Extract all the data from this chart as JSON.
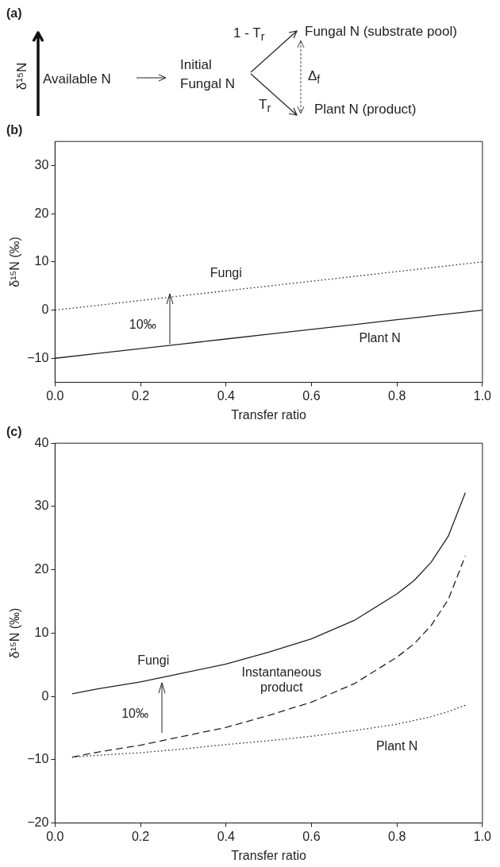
{
  "chart_data": [
    {
      "type": "other",
      "title": "(a)",
      "annotations": [
        "δ¹⁵N",
        "Available N",
        "Initial Fungal N",
        "1 - T$_{r}$",
        "T$_{r}$",
        "Fungal N (substrate pool)",
        "Plant N (product)",
        "Δ$_{f}$"
      ]
    },
    {
      "type": "line",
      "title": "(b)",
      "xlabel": "Transfer ratio",
      "ylabel": "δ¹⁵N (‰)",
      "x": [
        0,
        0.1,
        0.2,
        0.3,
        0.4,
        0.5,
        0.6,
        0.7,
        0.8,
        0.9,
        1
      ],
      "series": [
        {
          "name": "Fungi",
          "color": "#222222",
          "line_style": "dotted",
          "values": [
            0,
            1,
            2,
            3,
            4,
            5,
            6,
            7,
            8,
            9,
            10
          ]
        },
        {
          "name": "Plant N",
          "color": "#222222",
          "line_style": "solid",
          "values": [
            -10,
            -9,
            -8,
            -7,
            -6,
            -5,
            -4,
            -3,
            -2,
            -1,
            0
          ]
        }
      ],
      "xlim": [
        0,
        1
      ],
      "ylim": [
        -15,
        35
      ],
      "xticks": [
        {
          "value": 0,
          "label": "0.0"
        },
        {
          "value": 0.2,
          "label": "0.2"
        },
        {
          "value": 0.4,
          "label": "0.4"
        },
        {
          "value": 0.6,
          "label": "0.6"
        },
        {
          "value": 0.8,
          "label": "0.8"
        },
        {
          "value": 1,
          "label": "1.0"
        }
      ],
      "yticks": [
        -10,
        0,
        10,
        20,
        30
      ],
      "marker": "none",
      "annotations": [
        "10‰"
      ]
    },
    {
      "type": "line",
      "title": "(c)",
      "xlabel": "Transfer ratio",
      "ylabel": "δ¹⁵N (‰)",
      "x": [
        0.04,
        0.1,
        0.2,
        0.3,
        0.4,
        0.5,
        0.6,
        0.7,
        0.8,
        0.84,
        0.88,
        0.92,
        0.96
      ],
      "series": [
        {
          "name": "Fungi",
          "color": "#222222",
          "line_style": "solid",
          "values": [
            0.4,
            1.2,
            2.3,
            3.7,
            5.1,
            7.0,
            9.1,
            12.0,
            16.2,
            18.3,
            21.2,
            25.3,
            32.2
          ]
        },
        {
          "name": "Instantaneous product",
          "color": "#222222",
          "line_style": "dashed",
          "values": [
            -9.6,
            -8.8,
            -7.7,
            -6.3,
            -4.9,
            -3.0,
            -0.9,
            2.0,
            6.2,
            8.3,
            11.2,
            15.3,
            22.2
          ]
        },
        {
          "name": "Plant N",
          "color": "#222222",
          "line_style": "dotted",
          "values": [
            -9.6,
            -9.3,
            -8.9,
            -8.3,
            -7.6,
            -7.0,
            -6.3,
            -5.4,
            -4.4,
            -3.8,
            -3.2,
            -2.4,
            -1.4
          ]
        }
      ],
      "xlim": [
        0,
        1
      ],
      "ylim": [
        -20,
        40
      ],
      "xticks": [
        {
          "value": 0,
          "label": "0.0"
        },
        {
          "value": 0.2,
          "label": "0.2"
        },
        {
          "value": 0.4,
          "label": "0.4"
        },
        {
          "value": 0.6,
          "label": "0.6"
        },
        {
          "value": 0.8,
          "label": "0.8"
        },
        {
          "value": 1,
          "label": "1.0"
        }
      ],
      "yticks": [
        -20,
        -10,
        0,
        10,
        20,
        30,
        40
      ],
      "marker": "none",
      "annotations": [
        "10‰"
      ]
    }
  ]
}
